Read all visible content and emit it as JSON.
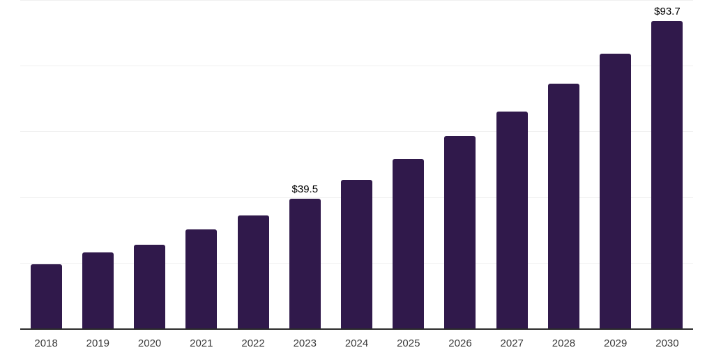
{
  "chart_data": {
    "type": "bar",
    "title": "",
    "xlabel": "",
    "ylabel": "",
    "categories": [
      "2018",
      "2019",
      "2020",
      "2021",
      "2022",
      "2023",
      "2024",
      "2025",
      "2026",
      "2027",
      "2028",
      "2029",
      "2030"
    ],
    "values": [
      19.5,
      23.2,
      25.5,
      30.2,
      34.4,
      39.5,
      45.2,
      51.6,
      58.6,
      66.1,
      74.5,
      83.7,
      93.7
    ],
    "data_labels": {
      "2023": "$39.5",
      "2030": "$93.7"
    },
    "ylim": [
      0,
      100
    ],
    "gridline_values": [
      20,
      40,
      60,
      80,
      100
    ],
    "grid": "horizontal-only",
    "legend": "none",
    "y_axis_ticks_visible": false,
    "colors": {
      "bar": "#30194B",
      "axis_line": "#2b2b2b",
      "gridline": "#f0f0f0",
      "data_label": "#000000",
      "tick_label": "#3a3a3a",
      "background": "#ffffff"
    }
  }
}
